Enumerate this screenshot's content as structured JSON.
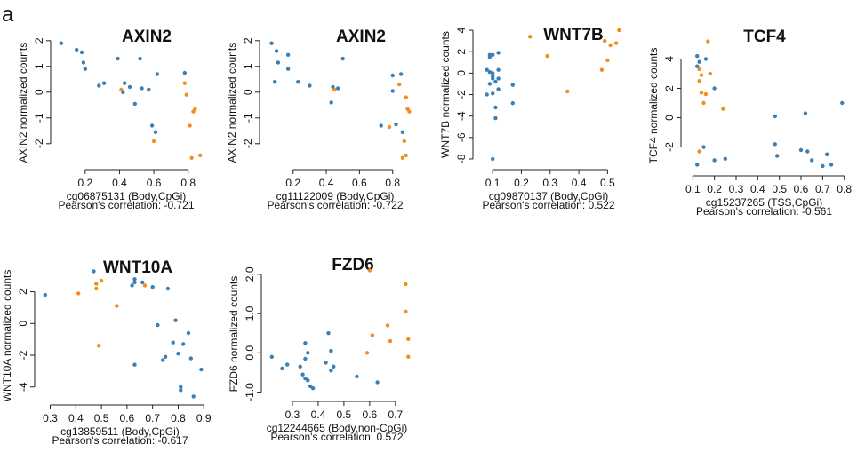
{
  "figure": {
    "panel_letter": "a"
  },
  "colors": {
    "blue": "#3a7fb5",
    "orange": "#f28e1c"
  },
  "chart_data": [
    {
      "type": "scatter",
      "title": "AXIN2",
      "ylabel": "AXIN2 normalized counts",
      "xlabel": "cg06875131 (Body,CpGi)",
      "correlation": "Pearson's correlation: -0.721",
      "xlim": [
        0.03,
        0.9
      ],
      "ylim": [
        -2.8,
        2.2
      ],
      "xticks": [
        0.2,
        0.4,
        0.6,
        0.8
      ],
      "xtick_labels": [
        "0.2",
        "0.4",
        "0.6",
        "0.8"
      ],
      "yticks": [
        -2,
        -1,
        0,
        1,
        2
      ],
      "ytick_labels": [
        "-2",
        "-1",
        "0",
        "1",
        "2"
      ],
      "series": [
        {
          "color": "blue",
          "points": [
            [
              0.06,
              1.9
            ],
            [
              0.15,
              1.65
            ],
            [
              0.18,
              1.55
            ],
            [
              0.19,
              1.15
            ],
            [
              0.2,
              0.9
            ],
            [
              0.28,
              0.25
            ],
            [
              0.31,
              0.35
            ],
            [
              0.39,
              1.3
            ],
            [
              0.42,
              0.0
            ],
            [
              0.43,
              0.35
            ],
            [
              0.46,
              0.2
            ],
            [
              0.49,
              -0.45
            ],
            [
              0.52,
              1.3
            ],
            [
              0.53,
              0.15
            ],
            [
              0.57,
              0.1
            ],
            [
              0.59,
              -1.3
            ],
            [
              0.61,
              -1.55
            ],
            [
              0.62,
              0.7
            ],
            [
              0.78,
              0.75
            ]
          ]
        },
        {
          "color": "orange",
          "points": [
            [
              0.41,
              0.1
            ],
            [
              0.6,
              -1.9
            ],
            [
              0.78,
              0.35
            ],
            [
              0.79,
              -0.1
            ],
            [
              0.81,
              -1.3
            ],
            [
              0.83,
              -0.75
            ],
            [
              0.84,
              -0.65
            ],
            [
              0.82,
              -2.55
            ],
            [
              0.87,
              -2.45
            ]
          ]
        }
      ]
    },
    {
      "type": "scatter",
      "title": "AXIN2",
      "ylabel": "AXIN2 normalized counts",
      "xlabel": "cg11122009 (Body,CpGi)",
      "correlation": "Pearson's correlation: -0.722",
      "xlim": [
        0.03,
        0.93
      ],
      "ylim": [
        -2.8,
        2.2
      ],
      "xticks": [
        0.2,
        0.4,
        0.6,
        0.8
      ],
      "xtick_labels": [
        "0.2",
        "0.4",
        "0.6",
        "0.8"
      ],
      "yticks": [
        -2,
        -1,
        0,
        1,
        2
      ],
      "ytick_labels": [
        "-2",
        "-1",
        "0",
        "1",
        "2"
      ],
      "series": [
        {
          "color": "blue",
          "points": [
            [
              0.07,
              1.9
            ],
            [
              0.1,
              1.6
            ],
            [
              0.11,
              1.15
            ],
            [
              0.09,
              0.4
            ],
            [
              0.17,
              1.45
            ],
            [
              0.17,
              0.9
            ],
            [
              0.23,
              0.4
            ],
            [
              0.3,
              0.25
            ],
            [
              0.43,
              -0.4
            ],
            [
              0.44,
              0.2
            ],
            [
              0.47,
              0.15
            ],
            [
              0.5,
              1.3
            ],
            [
              0.73,
              -1.3
            ],
            [
              0.8,
              0.05
            ],
            [
              0.8,
              0.65
            ],
            [
              0.85,
              0.7
            ],
            [
              0.86,
              -1.55
            ],
            [
              0.82,
              -1.25
            ]
          ]
        },
        {
          "color": "orange",
          "points": [
            [
              0.45,
              0.1
            ],
            [
              0.78,
              -1.35
            ],
            [
              0.84,
              0.3
            ],
            [
              0.88,
              -0.2
            ],
            [
              0.89,
              -0.65
            ],
            [
              0.9,
              -0.75
            ],
            [
              0.86,
              -2.55
            ],
            [
              0.88,
              -2.45
            ],
            [
              0.87,
              -1.9
            ]
          ]
        }
      ]
    },
    {
      "type": "scatter",
      "title": "WNT7B",
      "ylabel": "WNT7B normalized counts",
      "xlabel": "cg09870137 (Body,CpGi)",
      "correlation": "Pearson's correlation: 0.522",
      "xlim": [
        0.05,
        0.57
      ],
      "ylim": [
        -8.5,
        5.0
      ],
      "xticks": [
        0.1,
        0.2,
        0.3,
        0.4,
        0.5
      ],
      "xtick_labels": [
        "0.1",
        "0.2",
        "0.3",
        "0.4",
        "0.5"
      ],
      "yticks": [
        -8,
        -6,
        -4,
        -2,
        0,
        2,
        4
      ],
      "ytick_labels": [
        "-8",
        "-6",
        "-4",
        "-2",
        "0",
        "2",
        "4"
      ],
      "series": [
        {
          "color": "blue",
          "points": [
            [
              0.08,
              0.3
            ],
            [
              0.08,
              -2.0
            ],
            [
              0.09,
              -1.0
            ],
            [
              0.09,
              1.5
            ],
            [
              0.09,
              0.1
            ],
            [
              0.1,
              -0.5
            ],
            [
              0.1,
              -0.3
            ],
            [
              0.1,
              1.7
            ],
            [
              0.1,
              -1.9
            ],
            [
              0.11,
              -0.8
            ],
            [
              0.11,
              -3.2
            ],
            [
              0.11,
              -4.2
            ],
            [
              0.12,
              -0.5
            ],
            [
              0.12,
              1.9
            ],
            [
              0.12,
              -1.5
            ],
            [
              0.12,
              0.3
            ],
            [
              0.17,
              -2.8
            ],
            [
              0.17,
              -1.1
            ],
            [
              0.1,
              -8.0
            ],
            [
              0.09,
              1.7
            ],
            [
              0.1,
              0.0
            ]
          ]
        },
        {
          "color": "orange",
          "points": [
            [
              0.23,
              3.4
            ],
            [
              0.29,
              1.6
            ],
            [
              0.36,
              -1.7
            ],
            [
              0.48,
              0.3
            ],
            [
              0.49,
              3.0
            ],
            [
              0.5,
              1.2
            ],
            [
              0.51,
              2.6
            ],
            [
              0.53,
              2.8
            ],
            [
              0.54,
              4.0
            ]
          ]
        }
      ]
    },
    {
      "type": "scatter",
      "title": "TCF4",
      "ylabel": "TCF4 normalized counts",
      "xlabel": "cg15237265 (TSS,CpGi)",
      "correlation": "Pearson's correlation: -0.561",
      "xlim": [
        0.07,
        0.83
      ],
      "ylim": [
        -3.6,
        5.6
      ],
      "xticks": [
        0.1,
        0.2,
        0.3,
        0.4,
        0.5,
        0.6,
        0.7,
        0.8
      ],
      "xtick_labels": [
        "0.1",
        "0.2",
        "0.3",
        "0.4",
        "0.5",
        "0.6",
        "0.7",
        "0.8"
      ],
      "yticks": [
        -2,
        0,
        2,
        4
      ],
      "ytick_labels": [
        "-2",
        "0",
        "2",
        "4"
      ],
      "series": [
        {
          "color": "blue",
          "points": [
            [
              0.12,
              4.2
            ],
            [
              0.12,
              3.5
            ],
            [
              0.13,
              3.8
            ],
            [
              0.16,
              4.0
            ],
            [
              0.2,
              2.0
            ],
            [
              0.12,
              -3.2
            ],
            [
              0.15,
              -2.0
            ],
            [
              0.2,
              -2.9
            ],
            [
              0.25,
              -2.8
            ],
            [
              0.48,
              0.1
            ],
            [
              0.48,
              -1.8
            ],
            [
              0.49,
              -2.6
            ],
            [
              0.6,
              -2.2
            ],
            [
              0.62,
              0.3
            ],
            [
              0.63,
              -2.3
            ],
            [
              0.65,
              -2.9
            ],
            [
              0.7,
              -3.3
            ],
            [
              0.72,
              -2.5
            ],
            [
              0.74,
              -3.2
            ],
            [
              0.79,
              1.0
            ],
            [
              0.72,
              -2.5
            ]
          ]
        },
        {
          "color": "orange",
          "points": [
            [
              0.13,
              2.5
            ],
            [
              0.13,
              3.3
            ],
            [
              0.14,
              2.9
            ],
            [
              0.14,
              1.7
            ],
            [
              0.15,
              1.0
            ],
            [
              0.16,
              1.6
            ],
            [
              0.17,
              5.2
            ],
            [
              0.18,
              3.0
            ],
            [
              0.24,
              0.6
            ],
            [
              0.13,
              -2.3
            ]
          ]
        }
      ]
    },
    {
      "type": "scatter",
      "title": "WNT10A",
      "ylabel": "WNT10A normalized counts",
      "xlabel": "cg13859511 (Body,CpGi)",
      "correlation": "Pearson's correlation: -0.617",
      "xlim": [
        0.26,
        0.92
      ],
      "ylim": [
        -4.8,
        3.6
      ],
      "xticks": [
        0.3,
        0.4,
        0.5,
        0.6,
        0.7,
        0.8,
        0.9
      ],
      "xtick_labels": [
        "0.3",
        "0.4",
        "0.5",
        "0.6",
        "0.7",
        "0.8",
        "0.9"
      ],
      "yticks": [
        -4,
        -2,
        0,
        2
      ],
      "ytick_labels": [
        "-4",
        "-2",
        "0",
        "2"
      ],
      "series": [
        {
          "color": "blue",
          "points": [
            [
              0.28,
              1.8
            ],
            [
              0.47,
              3.3
            ],
            [
              0.62,
              2.4
            ],
            [
              0.63,
              2.6
            ],
            [
              0.63,
              -2.6
            ],
            [
              0.66,
              2.6
            ],
            [
              0.7,
              2.3
            ],
            [
              0.72,
              -0.1
            ],
            [
              0.74,
              -2.3
            ],
            [
              0.75,
              -2.1
            ],
            [
              0.76,
              2.2
            ],
            [
              0.78,
              -1.2
            ],
            [
              0.79,
              0.2
            ],
            [
              0.8,
              -1.9
            ],
            [
              0.82,
              -1.3
            ],
            [
              0.81,
              -4.0
            ],
            [
              0.81,
              -4.2
            ],
            [
              0.84,
              -0.6
            ],
            [
              0.85,
              -2.2
            ],
            [
              0.86,
              -4.6
            ],
            [
              0.89,
              -2.9
            ],
            [
              0.63,
              2.8
            ]
          ]
        },
        {
          "color": "orange",
          "points": [
            [
              0.41,
              1.9
            ],
            [
              0.48,
              2.2
            ],
            [
              0.48,
              2.5
            ],
            [
              0.49,
              -1.4
            ],
            [
              0.5,
              2.7
            ],
            [
              0.56,
              1.1
            ],
            [
              0.67,
              2.4
            ]
          ]
        }
      ]
    },
    {
      "type": "scatter",
      "title": "FZD6",
      "ylabel": "FZD6 normalized counts",
      "xlabel": "cg12244665 (Body,non-CpGi)",
      "correlation": "Pearson's correlation: 0.572",
      "xlim": [
        0.2,
        0.78
      ],
      "ylim": [
        -1.1,
        2.2
      ],
      "xticks": [
        0.3,
        0.4,
        0.5,
        0.6,
        0.7
      ],
      "xtick_labels": [
        "0.3",
        "0.4",
        "0.5",
        "0.6",
        "0.7"
      ],
      "yticks": [
        -1.0,
        0.0,
        1.0,
        2.0
      ],
      "ytick_labels": [
        "-1.0",
        "0.0",
        "1.0",
        "2.0"
      ],
      "series": [
        {
          "color": "blue",
          "points": [
            [
              0.22,
              -0.1
            ],
            [
              0.26,
              -0.4
            ],
            [
              0.28,
              -0.3
            ],
            [
              0.33,
              -0.35
            ],
            [
              0.34,
              -0.55
            ],
            [
              0.35,
              -0.65
            ],
            [
              0.35,
              0.25
            ],
            [
              0.35,
              -0.15
            ],
            [
              0.36,
              -0.7
            ],
            [
              0.37,
              -0.85
            ],
            [
              0.38,
              -0.9
            ],
            [
              0.43,
              -0.25
            ],
            [
              0.44,
              0.5
            ],
            [
              0.45,
              -0.45
            ],
            [
              0.45,
              0.05
            ],
            [
              0.46,
              -0.35
            ],
            [
              0.55,
              -0.6
            ],
            [
              0.63,
              -0.75
            ],
            [
              0.36,
              0.0
            ]
          ]
        },
        {
          "color": "orange",
          "points": [
            [
              0.59,
              0.0
            ],
            [
              0.61,
              0.45
            ],
            [
              0.67,
              0.7
            ],
            [
              0.68,
              0.3
            ],
            [
              0.74,
              1.75
            ],
            [
              0.74,
              1.05
            ],
            [
              0.75,
              0.35
            ],
            [
              0.75,
              -0.1
            ],
            [
              0.6,
              2.1
            ]
          ]
        }
      ]
    }
  ]
}
